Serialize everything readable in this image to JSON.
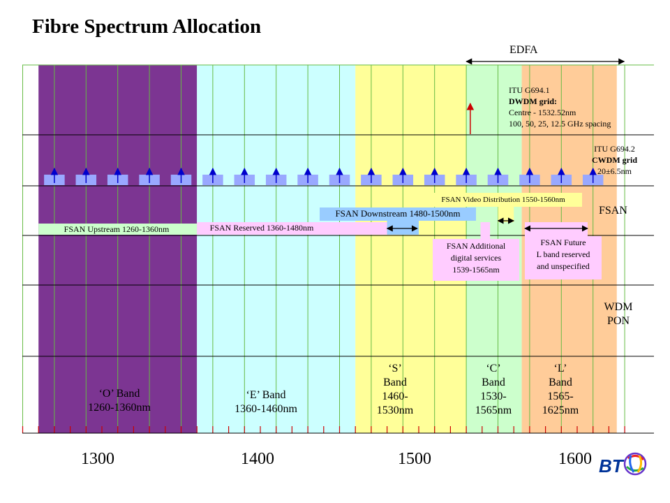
{
  "title": "Fibre Spectrum Allocation",
  "colors": {
    "o_band": "#7c3592",
    "e_band": "#ccffff",
    "s_band": "#ffff99",
    "c_band": "#ccffcc",
    "l_band": "#ffcc99",
    "fsan_upstream": "#ccffcc",
    "fsan_reserved": "#ffccff",
    "fsan_downstream": "#99ccff",
    "fsan_video": "#ffff99",
    "fsan_pink": "#ffccff",
    "cwdm_channel": "#99a8ff",
    "cwdm_arrow": "#0000cc",
    "dwdm_arrow": "#cc0000"
  },
  "axis": {
    "min_nm": 1250,
    "max_nm": 1630,
    "tick_step_nm": 10,
    "major_ticks": [
      {
        "value": 1300,
        "label": "1300"
      },
      {
        "value": 1400,
        "label": "1400"
      },
      {
        "value": 1500,
        "label": "1500"
      },
      {
        "value": 1600,
        "label": "1600"
      }
    ]
  },
  "bands": [
    {
      "id": "o",
      "start_nm": 1260,
      "end_nm": 1360,
      "lines": [
        "‘O’ Band",
        "1260-1360nm"
      ]
    },
    {
      "id": "e",
      "start_nm": 1360,
      "end_nm": 1460,
      "lines": [
        "‘E’ Band",
        "1360-1460nm"
      ]
    },
    {
      "id": "s",
      "start_nm": 1460,
      "end_nm": 1530,
      "lines": [
        "‘S’",
        "Band",
        "1460-",
        "1530nm"
      ]
    },
    {
      "id": "c",
      "start_nm": 1530,
      "end_nm": 1565,
      "lines": [
        "‘C’",
        "Band",
        "1530-",
        "1565nm"
      ]
    },
    {
      "id": "l",
      "start_nm": 1565,
      "end_nm": 1625,
      "lines": [
        "‘L’",
        "Band",
        "1565-",
        "1625nm"
      ]
    }
  ],
  "edfa": {
    "label": "EDFA",
    "start_nm": 1530,
    "end_nm": 1620
  },
  "itu_dwdm": {
    "lines": [
      "ITU G694.1",
      "DWDM grid:",
      "Centre - 1532.52nm",
      "100, 50, 25, 12.5 GHz spacing"
    ],
    "centre_nm": 1532.52
  },
  "itu_cwdm": {
    "lines": [
      "ITU G694.2",
      "CWDM grid",
      "20±6.5nm"
    ]
  },
  "cwdm_channels_nm": [
    1270,
    1290,
    1310,
    1330,
    1350,
    1370,
    1390,
    1410,
    1430,
    1450,
    1470,
    1490,
    1510,
    1530,
    1550,
    1570,
    1590,
    1610
  ],
  "cwdm_halfwidth_nm": 6.5,
  "fsan": {
    "label": "FSAN",
    "upstream": {
      "label": "FSAN Upstream 1260-1360nm",
      "start_nm": 1260,
      "end_nm": 1360
    },
    "reserved": {
      "label": "FSAN Reserved 1360-1480nm",
      "start_nm": 1360,
      "end_nm": 1480
    },
    "downstream": {
      "label": "FSAN Downstream 1480-1500nm",
      "start_nm": 1480,
      "end_nm": 1500
    },
    "video": {
      "label": "FSAN Video Distribution 1550-1560nm",
      "start_nm": 1550,
      "end_nm": 1560
    },
    "additional": {
      "lines": [
        "FSAN Additional",
        "digital services",
        "1539-1565nm"
      ],
      "start_nm": 1539,
      "end_nm": 1565
    },
    "future": {
      "lines": [
        "FSAN Future",
        "L band  reserved",
        "and unspecified"
      ],
      "start_nm": 1565,
      "end_nm": 1625
    }
  },
  "wdm_pon": {
    "lines": [
      "WDM",
      "PON"
    ]
  },
  "logo": {
    "text": "BT"
  }
}
